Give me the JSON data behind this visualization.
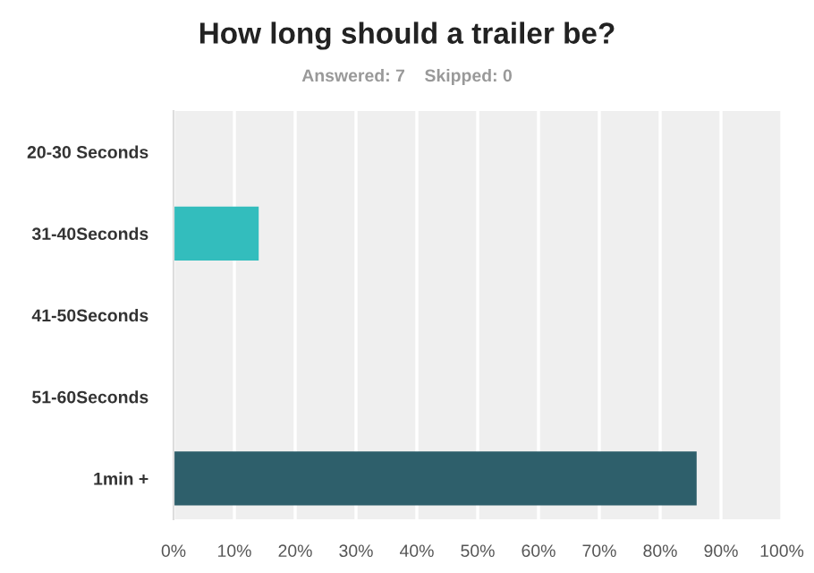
{
  "chart_data": {
    "type": "bar",
    "orientation": "horizontal",
    "title": "How long should a trailer be?",
    "subtitle": "Answered: 7    Skipped: 0",
    "categories": [
      "20-30 Seconds",
      "31-40Seconds",
      "41-50Seconds",
      "51-60Seconds",
      "1min +"
    ],
    "values": [
      0,
      14,
      0,
      0,
      86
    ],
    "colors": [
      "#33bdbd",
      "#33bdbd",
      "#33bdbd",
      "#33bdbd",
      "#2e5f6b"
    ],
    "xlim": [
      0,
      100
    ],
    "xticks": [
      {
        "value": 0,
        "label": "0%"
      },
      {
        "value": 10,
        "label": "10%"
      },
      {
        "value": 20,
        "label": "20%"
      },
      {
        "value": 30,
        "label": "30%"
      },
      {
        "value": 40,
        "label": "40%"
      },
      {
        "value": 50,
        "label": "50%"
      },
      {
        "value": 60,
        "label": "60%"
      },
      {
        "value": 70,
        "label": "70%"
      },
      {
        "value": 80,
        "label": "80%"
      },
      {
        "value": 90,
        "label": "90%"
      },
      {
        "value": 100,
        "label": "100%"
      }
    ],
    "grid": "x",
    "legend": false
  }
}
